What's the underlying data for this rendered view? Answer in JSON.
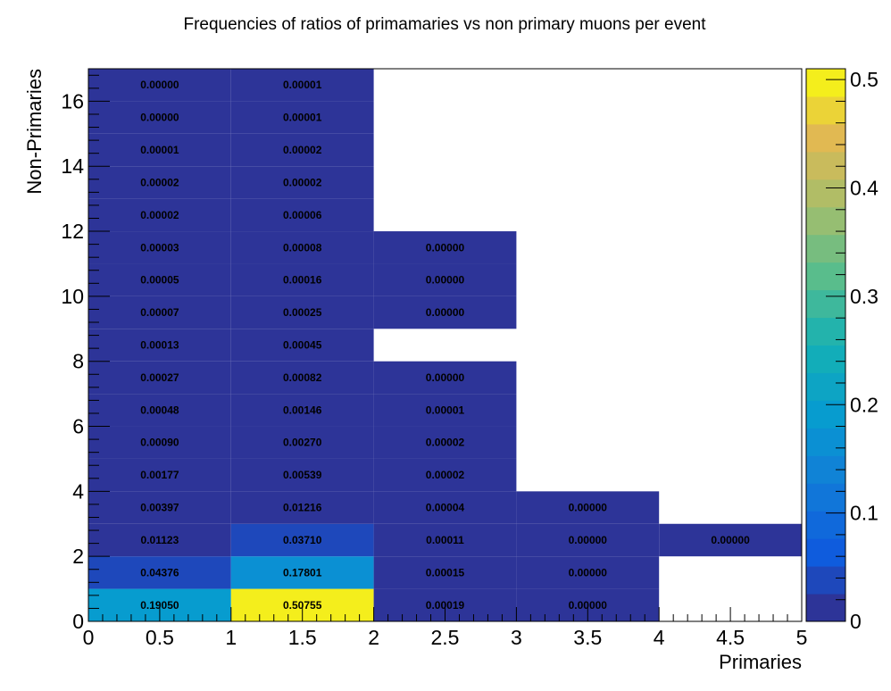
{
  "chart_data": {
    "type": "heatmap",
    "title": "Frequencies of ratios of primamaries vs non primary muons per event",
    "xlabel": "Primaries",
    "ylabel": "Non-Primaries",
    "xlim": [
      0,
      5
    ],
    "ylim": [
      0,
      17
    ],
    "x_ticks": [
      "0",
      "0.5",
      "1",
      "1.5",
      "2",
      "2.5",
      "3",
      "3.5",
      "4",
      "4.5",
      "5"
    ],
    "y_ticks": [
      "0",
      "2",
      "4",
      "6",
      "8",
      "10",
      "12",
      "14",
      "16"
    ],
    "colorbar_ticks": [
      "0",
      "0.1",
      "0.2",
      "0.3",
      "0.4",
      "0.5"
    ],
    "z_range": [
      0,
      0.51
    ],
    "x_bin_width": 1,
    "y_bin_height": 1,
    "cells": [
      {
        "x": 0,
        "y": 0,
        "value": 0.1905,
        "label": "0.19050"
      },
      {
        "x": 0,
        "y": 1,
        "value": 0.04376,
        "label": "0.04376"
      },
      {
        "x": 0,
        "y": 2,
        "value": 0.01123,
        "label": "0.01123"
      },
      {
        "x": 0,
        "y": 3,
        "value": 0.00397,
        "label": "0.00397"
      },
      {
        "x": 0,
        "y": 4,
        "value": 0.00177,
        "label": "0.00177"
      },
      {
        "x": 0,
        "y": 5,
        "value": 0.0009,
        "label": "0.00090"
      },
      {
        "x": 0,
        "y": 6,
        "value": 0.00048,
        "label": "0.00048"
      },
      {
        "x": 0,
        "y": 7,
        "value": 0.00027,
        "label": "0.00027"
      },
      {
        "x": 0,
        "y": 8,
        "value": 0.00013,
        "label": "0.00013"
      },
      {
        "x": 0,
        "y": 9,
        "value": 7e-05,
        "label": "0.00007"
      },
      {
        "x": 0,
        "y": 10,
        "value": 5e-05,
        "label": "0.00005"
      },
      {
        "x": 0,
        "y": 11,
        "value": 3e-05,
        "label": "0.00003"
      },
      {
        "x": 0,
        "y": 12,
        "value": 2e-05,
        "label": "0.00002"
      },
      {
        "x": 0,
        "y": 13,
        "value": 2e-05,
        "label": "0.00002"
      },
      {
        "x": 0,
        "y": 14,
        "value": 1e-05,
        "label": "0.00001"
      },
      {
        "x": 0,
        "y": 15,
        "value": 0.0,
        "label": "0.00000"
      },
      {
        "x": 0,
        "y": 16,
        "value": 0.0,
        "label": "0.00000"
      },
      {
        "x": 1,
        "y": 0,
        "value": 0.50755,
        "label": "0.50755"
      },
      {
        "x": 1,
        "y": 1,
        "value": 0.17801,
        "label": "0.17801"
      },
      {
        "x": 1,
        "y": 2,
        "value": 0.0371,
        "label": "0.03710"
      },
      {
        "x": 1,
        "y": 3,
        "value": 0.01216,
        "label": "0.01216"
      },
      {
        "x": 1,
        "y": 4,
        "value": 0.00539,
        "label": "0.00539"
      },
      {
        "x": 1,
        "y": 5,
        "value": 0.0027,
        "label": "0.00270"
      },
      {
        "x": 1,
        "y": 6,
        "value": 0.00146,
        "label": "0.00146"
      },
      {
        "x": 1,
        "y": 7,
        "value": 0.00082,
        "label": "0.00082"
      },
      {
        "x": 1,
        "y": 8,
        "value": 0.00045,
        "label": "0.00045"
      },
      {
        "x": 1,
        "y": 9,
        "value": 0.00025,
        "label": "0.00025"
      },
      {
        "x": 1,
        "y": 10,
        "value": 0.00016,
        "label": "0.00016"
      },
      {
        "x": 1,
        "y": 11,
        "value": 8e-05,
        "label": "0.00008"
      },
      {
        "x": 1,
        "y": 12,
        "value": 6e-05,
        "label": "0.00006"
      },
      {
        "x": 1,
        "y": 13,
        "value": 2e-05,
        "label": "0.00002"
      },
      {
        "x": 1,
        "y": 14,
        "value": 2e-05,
        "label": "0.00002"
      },
      {
        "x": 1,
        "y": 15,
        "value": 1e-05,
        "label": "0.00001"
      },
      {
        "x": 1,
        "y": 16,
        "value": 1e-05,
        "label": "0.00001"
      },
      {
        "x": 2,
        "y": 0,
        "value": 0.00019,
        "label": "0.00019"
      },
      {
        "x": 2,
        "y": 1,
        "value": 0.00015,
        "label": "0.00015"
      },
      {
        "x": 2,
        "y": 2,
        "value": 0.00011,
        "label": "0.00011"
      },
      {
        "x": 2,
        "y": 3,
        "value": 4e-05,
        "label": "0.00004"
      },
      {
        "x": 2,
        "y": 4,
        "value": 2e-05,
        "label": "0.00002"
      },
      {
        "x": 2,
        "y": 5,
        "value": 2e-05,
        "label": "0.00002"
      },
      {
        "x": 2,
        "y": 6,
        "value": 1e-05,
        "label": "0.00001"
      },
      {
        "x": 2,
        "y": 7,
        "value": 0.0,
        "label": "0.00000"
      },
      {
        "x": 2,
        "y": 9,
        "value": 0.0,
        "label": "0.00000"
      },
      {
        "x": 2,
        "y": 10,
        "value": 0.0,
        "label": "0.00000"
      },
      {
        "x": 2,
        "y": 11,
        "value": 0.0,
        "label": "0.00000"
      },
      {
        "x": 3,
        "y": 0,
        "value": 0.0,
        "label": "0.00000"
      },
      {
        "x": 3,
        "y": 1,
        "value": 0.0,
        "label": "0.00000"
      },
      {
        "x": 3,
        "y": 2,
        "value": 0.0,
        "label": "0.00000"
      },
      {
        "x": 3,
        "y": 3,
        "value": 0.0,
        "label": "0.00000"
      },
      {
        "x": 4,
        "y": 2,
        "value": 0.0,
        "label": "0.00000"
      }
    ]
  }
}
